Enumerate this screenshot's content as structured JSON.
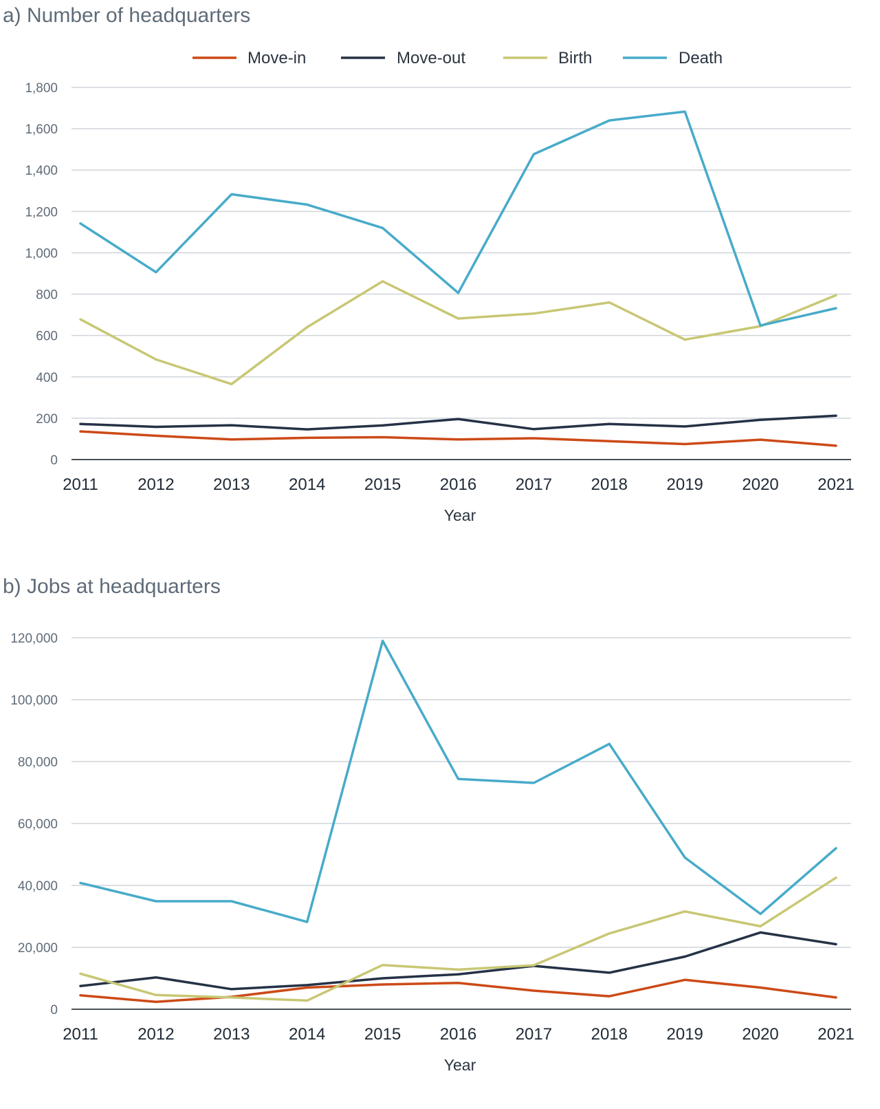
{
  "colors": {
    "move_in": "#cc4a17",
    "move_out": "#253246",
    "birth": "#c8c774",
    "death": "#47abc9"
  },
  "legend": [
    "Move-in",
    "Move-out",
    "Birth",
    "Death"
  ],
  "chart_data": [
    {
      "type": "line",
      "title": "a) Number of headquarters",
      "xlabel": "Year",
      "ylabel": "",
      "x": [
        "2011",
        "2012",
        "2013",
        "2014",
        "2015",
        "2016",
        "2017",
        "2018",
        "2019",
        "2020",
        "2021"
      ],
      "ylim": [
        0,
        1800
      ],
      "yticks": [
        "0",
        "200",
        "400",
        "600",
        "800",
        "1,000",
        "1,200",
        "1,400",
        "1,600",
        "1,800"
      ],
      "legend_position": "top-center",
      "grid": true,
      "series": [
        {
          "name": "Move-in",
          "color": "#cc4a17",
          "values": [
            136,
            115,
            97,
            105,
            108,
            97,
            103,
            89,
            75,
            96,
            67
          ]
        },
        {
          "name": "Move-out",
          "color": "#253246",
          "values": [
            172,
            158,
            166,
            146,
            165,
            196,
            147,
            172,
            160,
            192,
            212
          ]
        },
        {
          "name": "Birth",
          "color": "#c8c774",
          "values": [
            678,
            484,
            365,
            640,
            862,
            682,
            706,
            760,
            580,
            645,
            795
          ]
        },
        {
          "name": "Death",
          "color": "#47abc9",
          "values": [
            1142,
            906,
            1283,
            1233,
            1120,
            806,
            1477,
            1640,
            1683,
            648,
            732
          ]
        }
      ]
    },
    {
      "type": "line",
      "title": "b) Jobs at headquarters",
      "xlabel": "Year",
      "ylabel": "",
      "x": [
        "2011",
        "2012",
        "2013",
        "2014",
        "2015",
        "2016",
        "2017",
        "2018",
        "2019",
        "2020",
        "2021"
      ],
      "ylim": [
        0,
        120000
      ],
      "yticks": [
        "0",
        "20,000",
        "40,000",
        "60,000",
        "80,000",
        "100,000",
        "120,000"
      ],
      "grid": true,
      "series": [
        {
          "name": "Move-in",
          "color": "#cc4a17",
          "values": [
            4500,
            2400,
            4000,
            7000,
            8000,
            8500,
            6000,
            4200,
            9500,
            7000,
            3800
          ]
        },
        {
          "name": "Move-out",
          "color": "#253246",
          "values": [
            7500,
            10300,
            6500,
            7800,
            10000,
            11300,
            14000,
            11800,
            17000,
            24800,
            21000
          ]
        },
        {
          "name": "Birth",
          "color": "#c8c774",
          "values": [
            11500,
            4600,
            3800,
            2800,
            14300,
            12800,
            14200,
            24500,
            31600,
            26800,
            42500
          ]
        },
        {
          "name": "Death",
          "color": "#47abc9",
          "values": [
            40800,
            34900,
            34900,
            28200,
            119000,
            74400,
            73100,
            85700,
            49000,
            30800,
            52000
          ]
        }
      ]
    }
  ]
}
